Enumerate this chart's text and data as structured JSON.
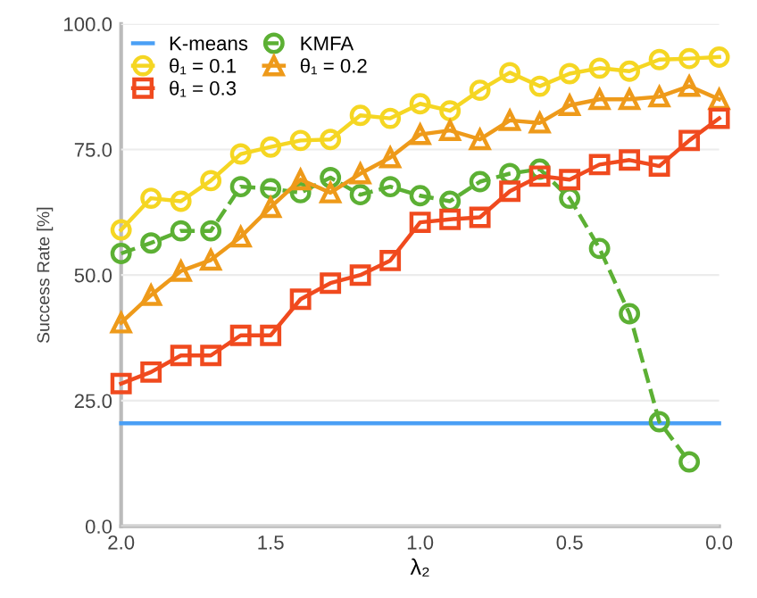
{
  "chart_data": {
    "type": "line",
    "xlabel": "λ₂",
    "ylabel": "Success Rate [%]",
    "x": [
      2.0,
      1.9,
      1.8,
      1.7,
      1.6,
      1.5,
      1.4,
      1.3,
      1.2,
      1.1,
      1.0,
      0.9,
      0.8,
      0.7,
      0.6,
      0.5,
      0.4,
      0.3,
      0.2,
      0.1,
      0.0
    ],
    "series": [
      {
        "name": "K-means",
        "color": "#4a9ff5",
        "x": [
          2.0,
          0.0
        ],
        "values": [
          20.5,
          20.5
        ],
        "marker": "none",
        "line_style": "solid"
      },
      {
        "name": "KMFA",
        "color": "#5cb034",
        "marker": "circle",
        "line_style": "dashed",
        "values": [
          54.3,
          56.4,
          58.8,
          58.8,
          67.6,
          67.2,
          66.4,
          69.4,
          66,
          67.6,
          65.8,
          64.7,
          68.6,
          70.2,
          71.1,
          65.3,
          55.3,
          42.3,
          20.8,
          12.8,
          null
        ]
      },
      {
        "name": "θ₁ = 0.1",
        "color": "#f5d623",
        "marker": "circle",
        "line_style": "solid",
        "values": [
          59,
          65.3,
          64.7,
          68.8,
          74.1,
          75.5,
          76.8,
          77,
          81.8,
          81.2,
          84.1,
          82.7,
          86.8,
          90.3,
          87.6,
          90.1,
          91.2,
          90.6,
          92.9,
          93.1,
          93.4
        ]
      },
      {
        "name": "θ₁ = 0.2",
        "color": "#ee9a1a",
        "marker": "triangle",
        "line_style": "solid",
        "values": [
          40.5,
          46,
          50.8,
          53,
          57.6,
          63.5,
          69,
          66.4,
          70.2,
          73.4,
          78,
          78.8,
          77,
          80.8,
          80.3,
          83.8,
          85,
          85,
          85.5,
          87.6,
          85
        ]
      },
      {
        "name": "θ₁ = 0.3",
        "color": "#f04a1e",
        "marker": "square",
        "line_style": "solid",
        "values": [
          28.4,
          30.7,
          34,
          34,
          38,
          38,
          45.2,
          48.4,
          50,
          52.9,
          60.5,
          61.1,
          61.5,
          66.7,
          69.7,
          69,
          72,
          72.9,
          71.7,
          76.8,
          81.2
        ]
      }
    ],
    "xlim": [
      2.0,
      0.0
    ],
    "xticks": [
      {
        "value": 2.0,
        "label": "2.0"
      },
      {
        "value": 1.5,
        "label": "1.5"
      },
      {
        "value": 1.0,
        "label": "1.0"
      },
      {
        "value": 0.5,
        "label": "0.5"
      },
      {
        "value": 0.0,
        "label": "0.0"
      }
    ],
    "ylim": [
      0,
      100
    ],
    "yticks": [
      {
        "value": 0,
        "label": "0.0"
      },
      {
        "value": 25,
        "label": "25.0"
      },
      {
        "value": 50,
        "label": "50.0"
      },
      {
        "value": 75,
        "label": "75.0"
      },
      {
        "value": 100,
        "label": "100.0"
      }
    ],
    "grid": "y",
    "legend": "top left"
  }
}
